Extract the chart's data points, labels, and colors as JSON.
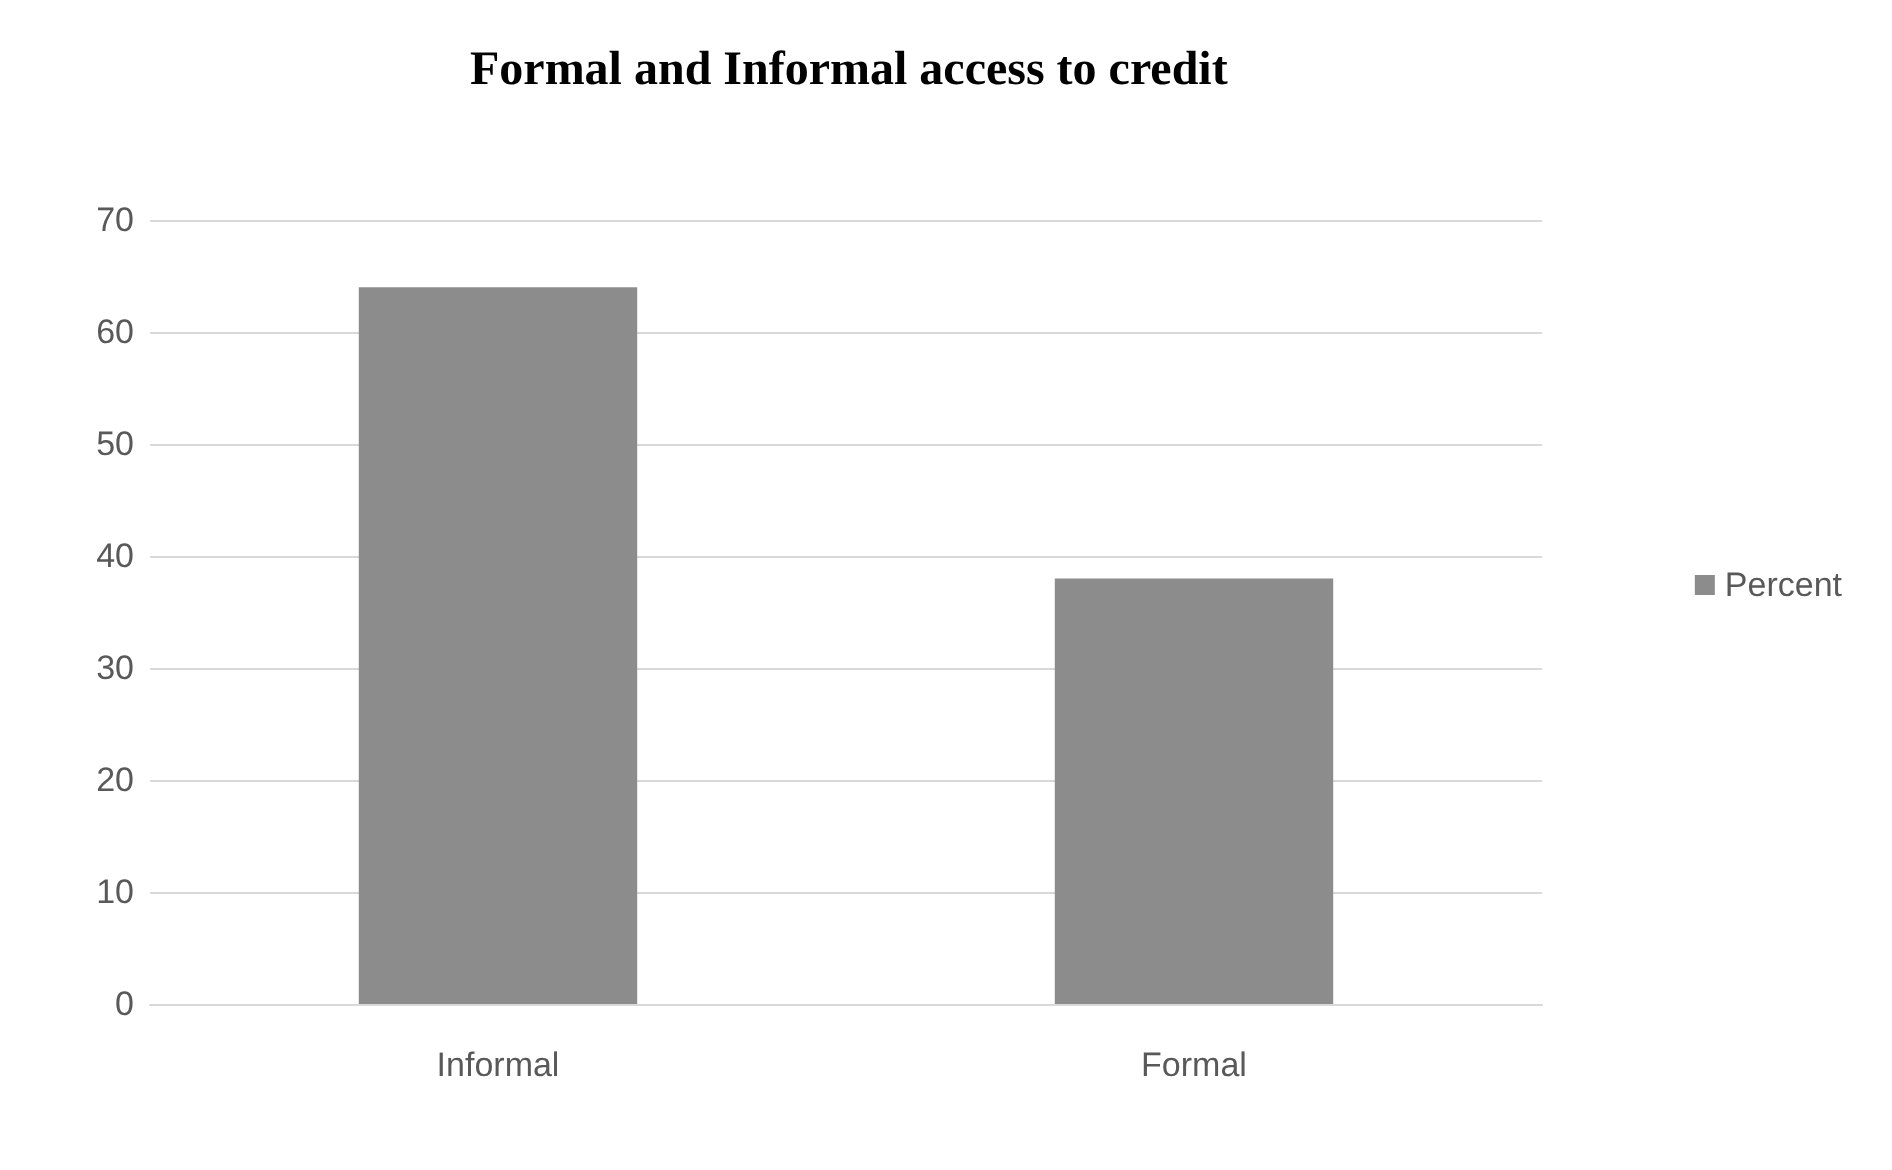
{
  "chart_data": {
    "type": "bar",
    "title": "Formal and Informal access to credit",
    "categories": [
      "Informal",
      "Formal"
    ],
    "series": [
      {
        "name": "Percent",
        "color": "#8c8c8c",
        "values": [
          64,
          38
        ]
      }
    ],
    "ylim": [
      0,
      70
    ],
    "yticks": [
      0,
      10,
      20,
      30,
      40,
      50,
      60,
      70
    ],
    "grid": "y",
    "legend": "right"
  }
}
